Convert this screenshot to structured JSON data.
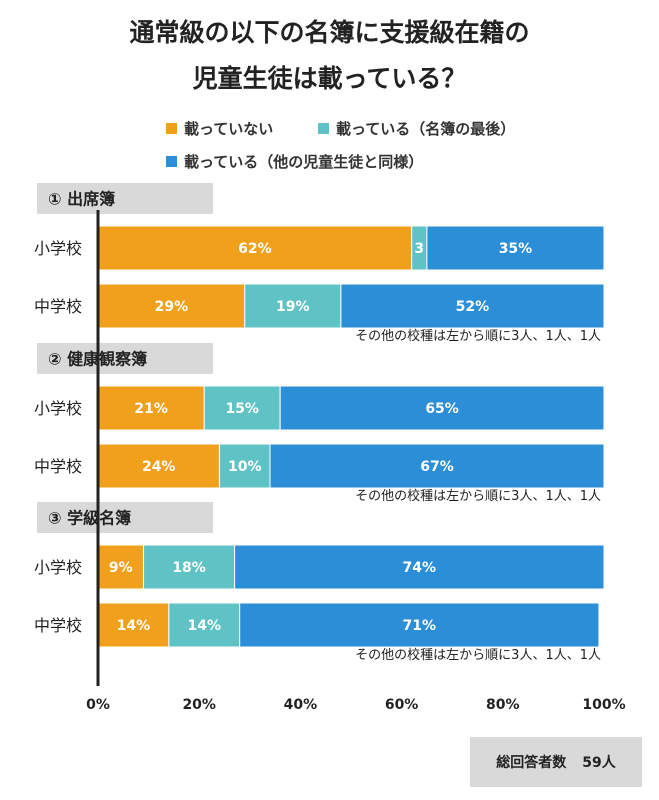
{
  "title_lines": [
    "通常級の以下の名簿に支援級在籍の",
    "児童生徒は載っている？"
  ],
  "legend": [
    {
      "label": "載っていない",
      "color": "#f0a01a"
    },
    {
      "label": "載っている（名簿の最後）",
      "color": "#5fc3c6"
    },
    {
      "label": "載っている（他の児童生徒と同様）",
      "color": "#2b8ed6"
    }
  ],
  "chart_data": {
    "type": "bar",
    "orientation": "horizontal",
    "stacked": true,
    "xlim": [
      0,
      100
    ],
    "x_ticks": [
      "0%",
      "20%",
      "40%",
      "60%",
      "80%",
      "100%"
    ],
    "groups": [
      {
        "title": "① 出席簿",
        "rows": [
          {
            "category": "小学校",
            "values": [
              62,
              3,
              35
            ],
            "labels": [
              "62%",
              "3",
              "35%"
            ]
          },
          {
            "category": "中学校",
            "values": [
              29,
              19,
              52
            ],
            "labels": [
              "29%",
              "19%",
              "52%"
            ]
          }
        ],
        "note": "その他の校種は左から順に3人、1人、1人"
      },
      {
        "title": "② 健康観察簿",
        "rows": [
          {
            "category": "小学校",
            "values": [
              21,
              15,
              65
            ],
            "labels": [
              "21%",
              "15%",
              "65%"
            ]
          },
          {
            "category": "中学校",
            "values": [
              24,
              10,
              67
            ],
            "labels": [
              "24%",
              "10%",
              "67%"
            ]
          }
        ],
        "note": "その他の校種は左から順に3人、1人、1人"
      },
      {
        "title": "③ 学級名簿",
        "rows": [
          {
            "category": "小学校",
            "values": [
              9,
              18,
              74
            ],
            "labels": [
              "9%",
              "18%",
              "74%"
            ]
          },
          {
            "category": "中学校",
            "values": [
              14,
              14,
              71
            ],
            "labels": [
              "14%",
              "14%",
              "71%"
            ]
          }
        ],
        "note": "その他の校種は左から順に3人、1人、1人"
      }
    ],
    "grid": false,
    "legend_position": "top"
  },
  "footer": {
    "label": "総回答者数",
    "value": "59人"
  }
}
